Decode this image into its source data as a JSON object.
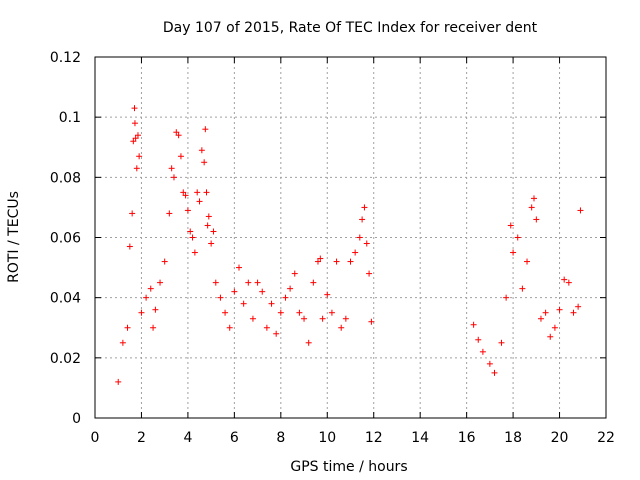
{
  "chart_data": {
    "type": "scatter",
    "title": "Day 107 of 2015, Rate Of TEC Index for receiver dent",
    "xlabel": "GPS time / hours",
    "ylabel": "ROTI / TECUs",
    "xlim": [
      0,
      22
    ],
    "ylim": [
      0,
      0.12
    ],
    "xticks": [
      0,
      2,
      4,
      6,
      8,
      10,
      12,
      14,
      16,
      18,
      20,
      22
    ],
    "yticks": [
      0,
      0.02,
      0.04,
      0.06,
      0.08,
      0.1,
      0.12
    ],
    "xtick_labels": [
      "0",
      "2",
      "4",
      "6",
      "8",
      "10",
      "12",
      "14",
      "16",
      "18",
      "20",
      "22"
    ],
    "ytick_labels": [
      "0",
      "0.02",
      "0.04",
      "0.06",
      "0.08",
      "0.1",
      "0.12"
    ],
    "grid": true,
    "marker": "+",
    "colors": {
      "points": "#ff0000",
      "grid": "#a0a0a0",
      "axes": "#000000"
    },
    "series": [
      {
        "name": "ROTI",
        "x": [
          1.0,
          1.2,
          1.4,
          1.5,
          1.6,
          1.65,
          1.7,
          1.72,
          1.75,
          1.8,
          1.85,
          1.9,
          2.0,
          2.2,
          2.4,
          2.5,
          2.6,
          2.8,
          3.0,
          3.2,
          3.3,
          3.4,
          3.5,
          3.6,
          3.7,
          3.8,
          3.9,
          4.0,
          4.1,
          4.2,
          4.3,
          4.4,
          4.5,
          4.6,
          4.7,
          4.75,
          4.8,
          4.85,
          4.9,
          5.0,
          5.1,
          5.2,
          5.4,
          5.6,
          5.8,
          6.0,
          6.2,
          6.4,
          6.6,
          6.8,
          7.0,
          7.2,
          7.4,
          7.6,
          7.8,
          8.0,
          8.2,
          8.4,
          8.6,
          8.8,
          9.0,
          9.2,
          9.4,
          9.6,
          9.7,
          9.8,
          10.0,
          10.2,
          10.4,
          10.6,
          10.8,
          11.0,
          11.2,
          11.4,
          11.5,
          11.6,
          11.7,
          11.8,
          11.9,
          16.3,
          16.5,
          16.7,
          17.0,
          17.2,
          17.5,
          17.7,
          17.9,
          18.0,
          18.2,
          18.4,
          18.6,
          18.8,
          18.9,
          19.0,
          19.2,
          19.4,
          19.6,
          19.8,
          20.0,
          20.2,
          20.4,
          20.6,
          20.8,
          20.9
        ],
        "y": [
          0.012,
          0.025,
          0.03,
          0.057,
          0.068,
          0.092,
          0.103,
          0.098,
          0.093,
          0.083,
          0.094,
          0.087,
          0.035,
          0.04,
          0.043,
          0.03,
          0.036,
          0.045,
          0.052,
          0.068,
          0.083,
          0.08,
          0.095,
          0.094,
          0.087,
          0.075,
          0.074,
          0.069,
          0.062,
          0.06,
          0.055,
          0.075,
          0.072,
          0.089,
          0.085,
          0.096,
          0.075,
          0.064,
          0.067,
          0.058,
          0.062,
          0.045,
          0.04,
          0.035,
          0.03,
          0.042,
          0.05,
          0.038,
          0.045,
          0.033,
          0.045,
          0.042,
          0.03,
          0.038,
          0.028,
          0.035,
          0.04,
          0.043,
          0.048,
          0.035,
          0.033,
          0.025,
          0.045,
          0.052,
          0.053,
          0.033,
          0.041,
          0.035,
          0.052,
          0.03,
          0.033,
          0.052,
          0.055,
          0.06,
          0.066,
          0.07,
          0.058,
          0.048,
          0.032,
          0.031,
          0.026,
          0.022,
          0.018,
          0.015,
          0.025,
          0.04,
          0.064,
          0.055,
          0.06,
          0.043,
          0.052,
          0.07,
          0.073,
          0.066,
          0.033,
          0.035,
          0.027,
          0.03,
          0.036,
          0.046,
          0.045,
          0.035,
          0.037,
          0.069
        ]
      }
    ]
  }
}
